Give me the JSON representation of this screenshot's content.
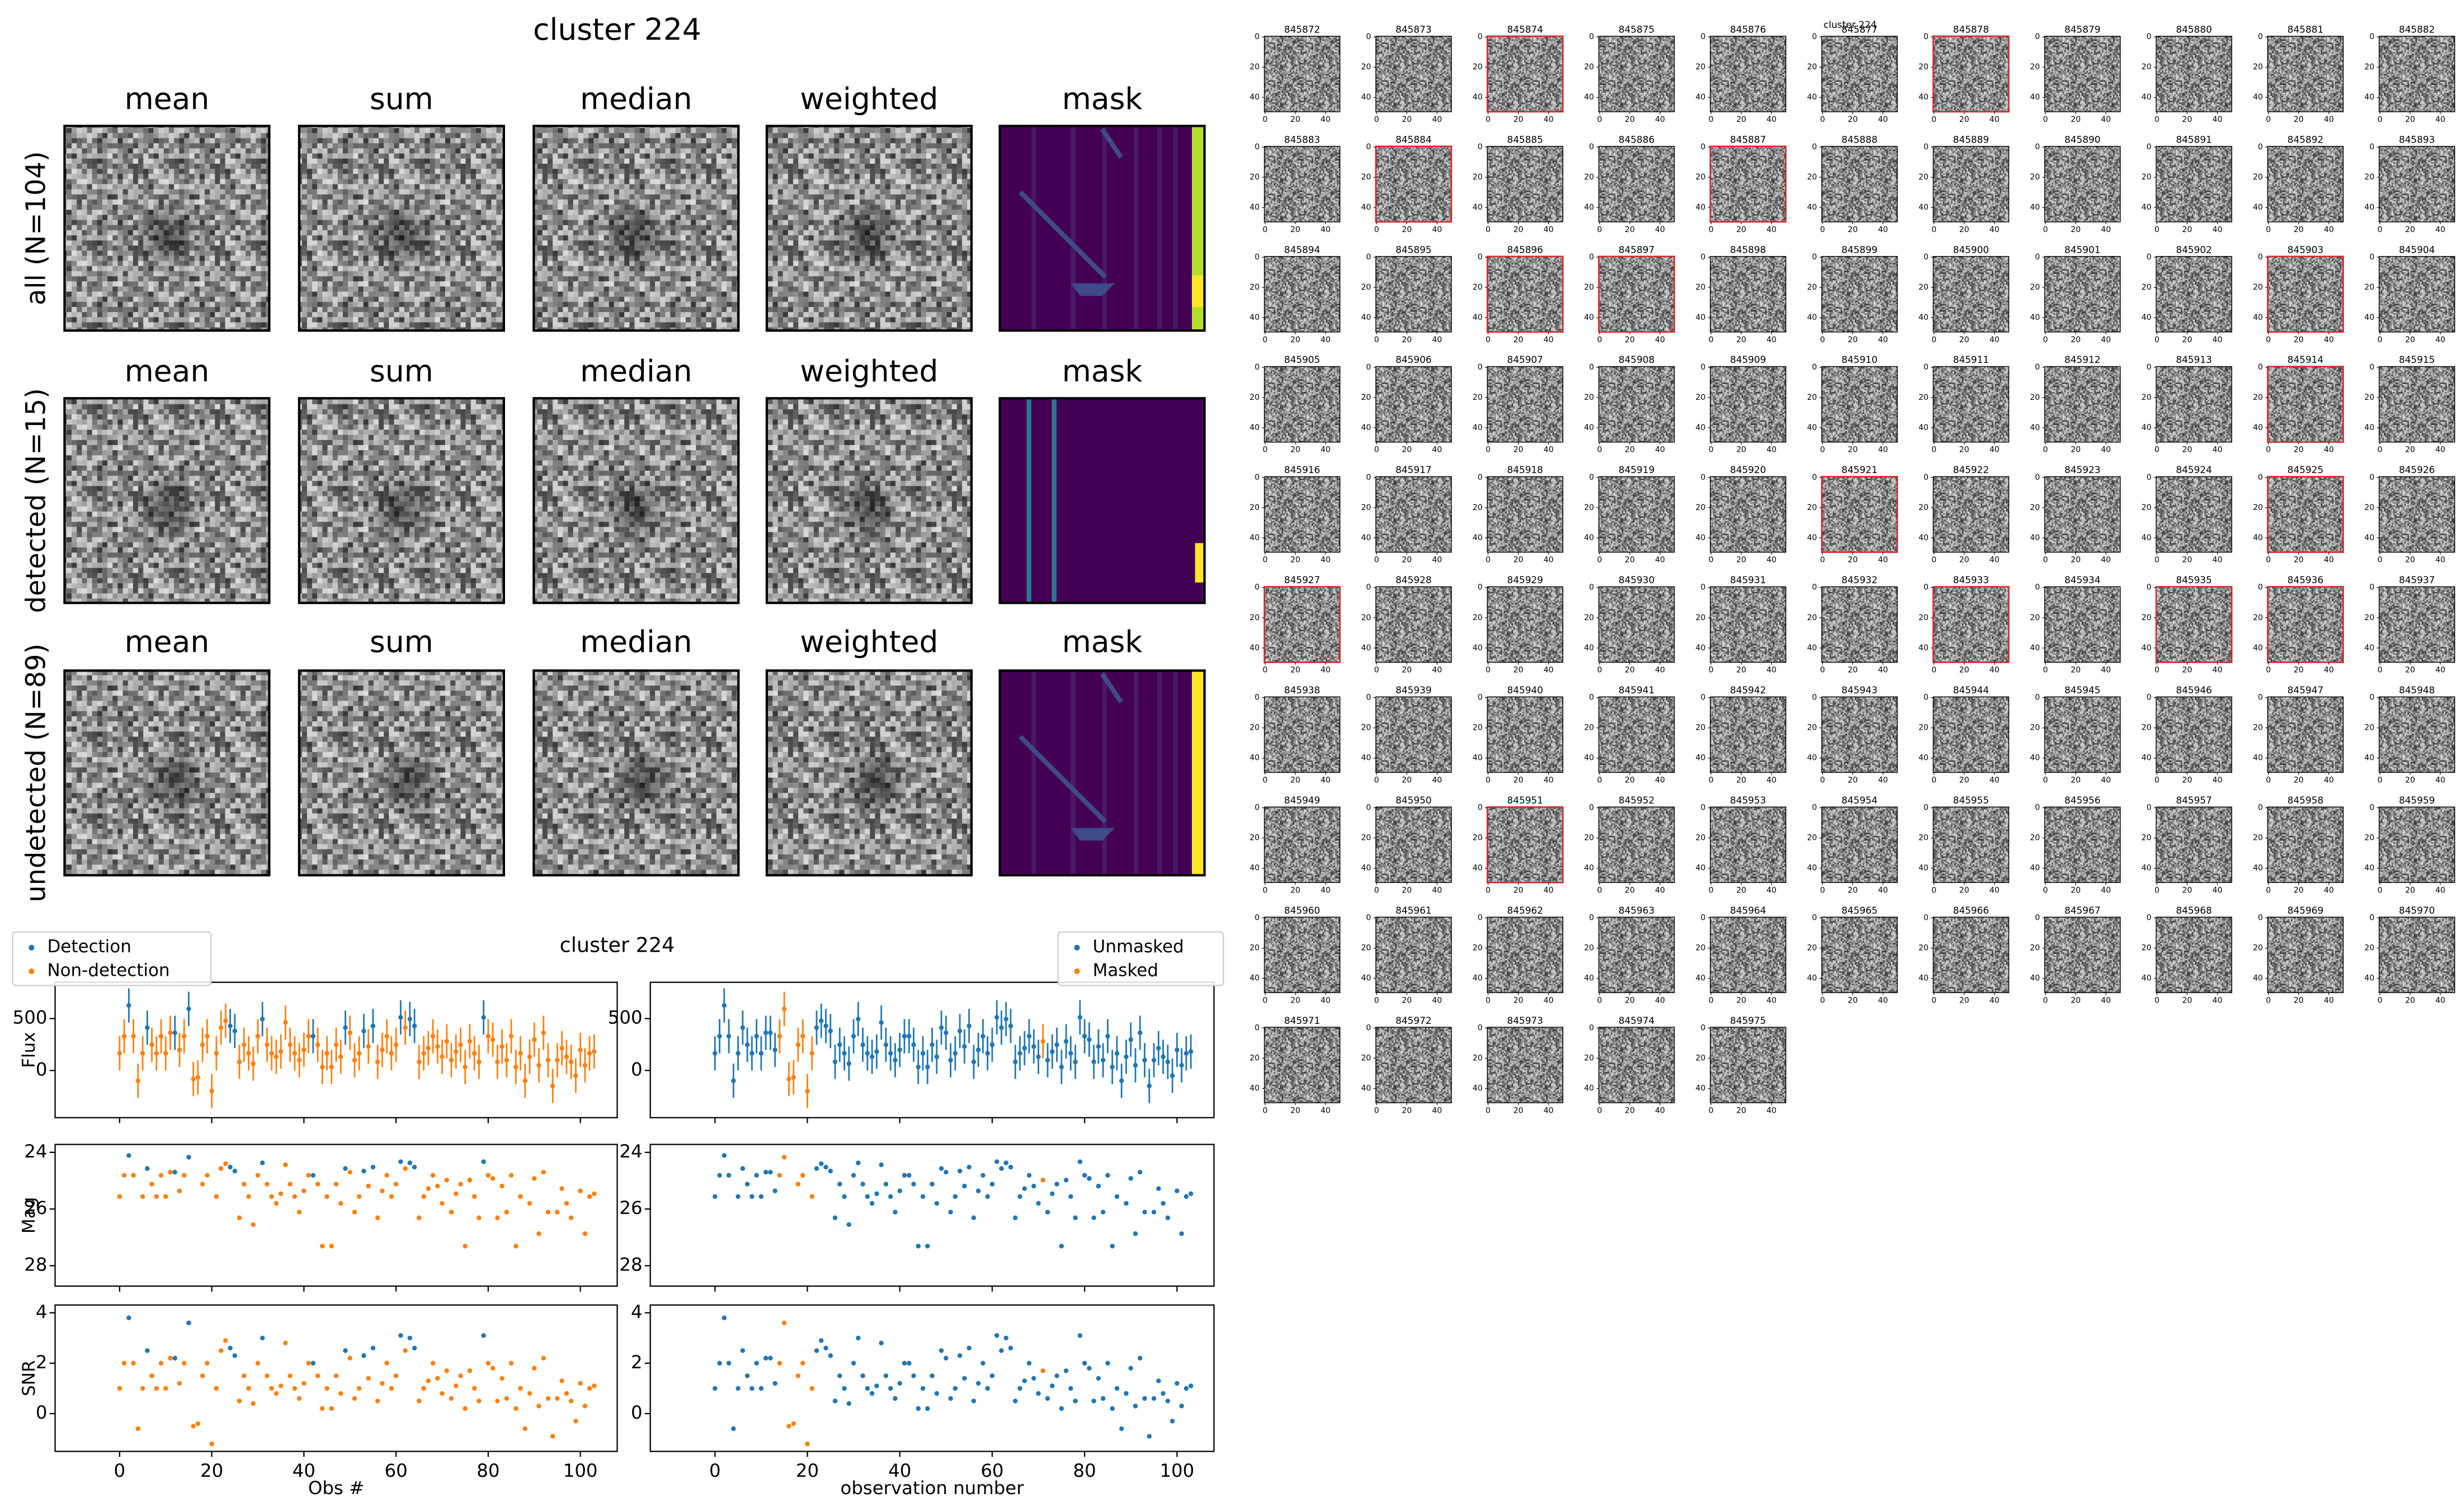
{
  "cutouts": {
    "title": "cluster 224",
    "columns": [
      "mean",
      "sum",
      "median",
      "weighted",
      "mask"
    ],
    "rows": [
      "all (N=104)",
      "detected (N=15)",
      "undetected (N=89)"
    ]
  },
  "chart_data": {
    "type": "scatter",
    "title": "cluster 224",
    "x": [
      0,
      1,
      2,
      3,
      4,
      5,
      6,
      7,
      8,
      9,
      10,
      11,
      12,
      13,
      14,
      15,
      16,
      17,
      18,
      19,
      20,
      21,
      22,
      23,
      24,
      25,
      26,
      27,
      28,
      29,
      30,
      31,
      32,
      33,
      34,
      35,
      36,
      37,
      38,
      39,
      40,
      41,
      42,
      43,
      44,
      45,
      46,
      47,
      48,
      49,
      50,
      51,
      52,
      53,
      54,
      55,
      56,
      57,
      58,
      59,
      60,
      61,
      62,
      63,
      64,
      65,
      66,
      67,
      68,
      69,
      70,
      71,
      72,
      73,
      74,
      75,
      76,
      77,
      78,
      79,
      80,
      81,
      82,
      83,
      84,
      85,
      86,
      87,
      88,
      89,
      90,
      91,
      92,
      93,
      94,
      95,
      96,
      97,
      98,
      99,
      100,
      101,
      102,
      103
    ],
    "xlim": [
      -14,
      108
    ],
    "xticks": [
      0,
      20,
      40,
      60,
      80,
      100
    ],
    "xlabels": [
      "Obs #",
      "observation number"
    ],
    "series": [
      {
        "name": "Flux",
        "ylim": [
          -455,
          850
        ],
        "yticks": [
          0,
          500
        ],
        "values": [
          165,
          330,
          627,
          330,
          -99,
          165,
          413,
          248,
          165,
          330,
          165,
          363,
          363,
          198,
          330,
          594,
          -83,
          -66,
          248,
          330,
          -198,
          165,
          413,
          479,
          429,
          380,
          83,
          248,
          165,
          66,
          330,
          495,
          248,
          165,
          132,
          182,
          462,
          248,
          165,
          99,
          198,
          330,
          330,
          248,
          33,
          165,
          33,
          248,
          132,
          413,
          363,
          99,
          165,
          380,
          231,
          429,
          83,
          198,
          330,
          165,
          248,
          512,
          413,
          495,
          429,
          83,
          165,
          215,
          330,
          231,
          132,
          281,
          99,
          182,
          248,
          33,
          281,
          165,
          83,
          512,
          330,
          297,
          83,
          231,
          99,
          330,
          33,
          165,
          -99,
          132,
          297,
          50,
          363,
          99,
          -149,
          99,
          215,
          132,
          83,
          -50,
          198,
          50,
          165,
          182
        ],
        "errors": [
          165,
          165,
          165,
          165,
          165,
          165,
          165,
          165,
          165,
          165,
          165,
          165,
          165,
          165,
          165,
          165,
          165,
          165,
          165,
          165,
          165,
          165,
          165,
          165,
          165,
          165,
          165,
          165,
          165,
          165,
          165,
          165,
          165,
          165,
          165,
          165,
          165,
          165,
          165,
          165,
          165,
          165,
          165,
          165,
          165,
          165,
          165,
          165,
          165,
          165,
          165,
          165,
          165,
          165,
          165,
          165,
          165,
          165,
          165,
          165,
          165,
          165,
          165,
          165,
          165,
          165,
          165,
          165,
          165,
          165,
          165,
          165,
          165,
          165,
          165,
          165,
          165,
          165,
          165,
          165,
          165,
          165,
          165,
          165,
          165,
          165,
          165,
          165,
          165,
          165,
          165,
          165,
          165,
          165,
          165,
          165,
          165,
          165,
          165,
          165,
          165,
          165,
          165,
          165
        ]
      },
      {
        "name": "Mag",
        "ylim": [
          28.72,
          23.72
        ],
        "yticks": [
          24,
          26,
          28
        ],
        "values": [
          25.56,
          24.81,
          24.11,
          24.81,
          null,
          25.56,
          24.57,
          25.12,
          25.56,
          24.81,
          25.56,
          24.7,
          24.7,
          25.36,
          24.81,
          24.17,
          null,
          null,
          25.12,
          24.81,
          null,
          25.56,
          24.57,
          24.4,
          24.52,
          24.66,
          26.31,
          25.12,
          25.56,
          26.55,
          24.81,
          24.37,
          25.12,
          25.56,
          25.8,
          25.46,
          24.44,
          25.12,
          25.56,
          26.11,
          25.36,
          24.81,
          24.81,
          25.12,
          27.31,
          25.56,
          27.31,
          25.12,
          25.8,
          24.57,
          24.7,
          26.11,
          25.56,
          24.66,
          25.19,
          24.52,
          26.31,
          25.36,
          24.81,
          25.56,
          25.12,
          24.33,
          24.57,
          24.37,
          24.52,
          26.31,
          25.56,
          25.28,
          24.81,
          25.19,
          25.8,
          24.98,
          26.11,
          25.46,
          25.12,
          27.31,
          24.98,
          25.56,
          26.31,
          24.33,
          24.81,
          24.92,
          26.31,
          25.19,
          26.11,
          24.81,
          27.31,
          25.56,
          null,
          25.8,
          24.92,
          26.87,
          24.7,
          26.11,
          null,
          26.11,
          25.28,
          25.8,
          26.31,
          null,
          25.36,
          26.87,
          25.56,
          25.46
        ]
      },
      {
        "name": "SNR",
        "ylim": [
          -1.5,
          4.31
        ],
        "yticks": [
          0,
          2,
          4
        ],
        "values": [
          1.0,
          2.0,
          3.8,
          2.0,
          -0.6,
          1.0,
          2.5,
          1.5,
          1.0,
          2.0,
          1.0,
          2.2,
          2.2,
          1.2,
          2.0,
          3.6,
          -0.5,
          -0.4,
          1.5,
          2.0,
          -1.2,
          1.0,
          2.5,
          2.9,
          2.6,
          2.3,
          0.5,
          1.5,
          1.0,
          0.4,
          2.0,
          3.0,
          1.5,
          1.0,
          0.8,
          1.1,
          2.8,
          1.5,
          1.0,
          0.6,
          1.2,
          2.0,
          2.0,
          1.5,
          0.2,
          1.0,
          0.2,
          1.5,
          0.8,
          2.5,
          2.2,
          0.6,
          1.0,
          2.3,
          1.4,
          2.6,
          0.5,
          1.2,
          2.0,
          1.0,
          1.5,
          3.1,
          2.5,
          3.0,
          2.6,
          0.5,
          1.0,
          1.3,
          2.0,
          1.4,
          0.8,
          1.7,
          0.6,
          1.1,
          1.5,
          0.2,
          1.7,
          1.0,
          0.5,
          3.1,
          2.0,
          1.8,
          0.5,
          1.4,
          0.6,
          2.0,
          0.2,
          1.0,
          -0.6,
          0.8,
          1.8,
          0.3,
          2.2,
          0.6,
          -0.9,
          0.6,
          1.3,
          0.8,
          0.5,
          -0.3,
          1.2,
          0.3,
          1.0,
          1.1
        ]
      }
    ],
    "detected": [
      false,
      false,
      true,
      false,
      false,
      false,
      true,
      false,
      false,
      false,
      false,
      false,
      true,
      false,
      false,
      true,
      false,
      false,
      false,
      false,
      false,
      false,
      false,
      false,
      true,
      true,
      false,
      false,
      false,
      false,
      false,
      true,
      false,
      false,
      false,
      false,
      false,
      false,
      false,
      false,
      false,
      false,
      true,
      false,
      false,
      false,
      false,
      false,
      false,
      true,
      false,
      false,
      false,
      true,
      false,
      true,
      false,
      false,
      false,
      false,
      false,
      true,
      false,
      true,
      true,
      false,
      false,
      false,
      false,
      false,
      false,
      false,
      false,
      false,
      false,
      false,
      false,
      false,
      false,
      true,
      false,
      false,
      false,
      false,
      false,
      false,
      false,
      false,
      false,
      false,
      false,
      false,
      false,
      false,
      false,
      false,
      false,
      false,
      false,
      false,
      false,
      false,
      false,
      false
    ],
    "masked": [
      false,
      false,
      false,
      false,
      false,
      false,
      false,
      false,
      false,
      false,
      false,
      false,
      false,
      false,
      true,
      true,
      true,
      true,
      true,
      true,
      true,
      true,
      false,
      false,
      false,
      false,
      false,
      false,
      false,
      false,
      false,
      false,
      false,
      false,
      false,
      false,
      false,
      false,
      false,
      false,
      false,
      false,
      false,
      false,
      false,
      false,
      false,
      false,
      false,
      false,
      false,
      false,
      false,
      false,
      false,
      false,
      false,
      false,
      false,
      false,
      false,
      false,
      false,
      false,
      false,
      false,
      false,
      false,
      false,
      false,
      false,
      true,
      false,
      false,
      false,
      false,
      false,
      false,
      false,
      false,
      false,
      false,
      false,
      false,
      false,
      false,
      false,
      false,
      false,
      false,
      false,
      false,
      false,
      false,
      false,
      false,
      false,
      false,
      false,
      false,
      false,
      false,
      false,
      false
    ],
    "legends": [
      {
        "labels": [
          "Detection",
          "Non-detection"
        ],
        "colors": [
          "#1f77b4",
          "#ff7f0e"
        ]
      },
      {
        "labels": [
          "Unmasked",
          "Masked"
        ],
        "colors": [
          "#1f77b4",
          "#ff7f0e"
        ]
      }
    ]
  },
  "thumbnails": {
    "title": "cluster 224",
    "lim": [
      -0.5,
      49.5
    ],
    "ticks": [
      0,
      20,
      40
    ],
    "highlight_color": "#d62728",
    "labels": [
      "845872",
      "845873",
      "845874",
      "845875",
      "845876",
      "845877",
      "845878",
      "845879",
      "845880",
      "845881",
      "845882",
      "845883",
      "845884",
      "845885",
      "845886",
      "845887",
      "845888",
      "845889",
      "845890",
      "845891",
      "845892",
      "845893",
      "845894",
      "845895",
      "845896",
      "845897",
      "845898",
      "845899",
      "845900",
      "845901",
      "845902",
      "845903",
      "845904",
      "845905",
      "845906",
      "845907",
      "845908",
      "845909",
      "845910",
      "845911",
      "845912",
      "845913",
      "845914",
      "845915",
      "845916",
      "845917",
      "845918",
      "845919",
      "845920",
      "845921",
      "845922",
      "845923",
      "845924",
      "845925",
      "845926",
      "845927",
      "845928",
      "845929",
      "845930",
      "845931",
      "845932",
      "845933",
      "845934",
      "845935",
      "845936",
      "845937",
      "845938",
      "845939",
      "845940",
      "845941",
      "845942",
      "845943",
      "845944",
      "845945",
      "845946",
      "845947",
      "845948",
      "845949",
      "845950",
      "845951",
      "845952",
      "845953",
      "845954",
      "845955",
      "845956",
      "845957",
      "845958",
      "845959",
      "845960",
      "845961",
      "845962",
      "845963",
      "845964",
      "845965",
      "845966",
      "845967",
      "845968",
      "845969",
      "845970",
      "845971",
      "845972",
      "845973",
      "845974",
      "845975"
    ]
  }
}
